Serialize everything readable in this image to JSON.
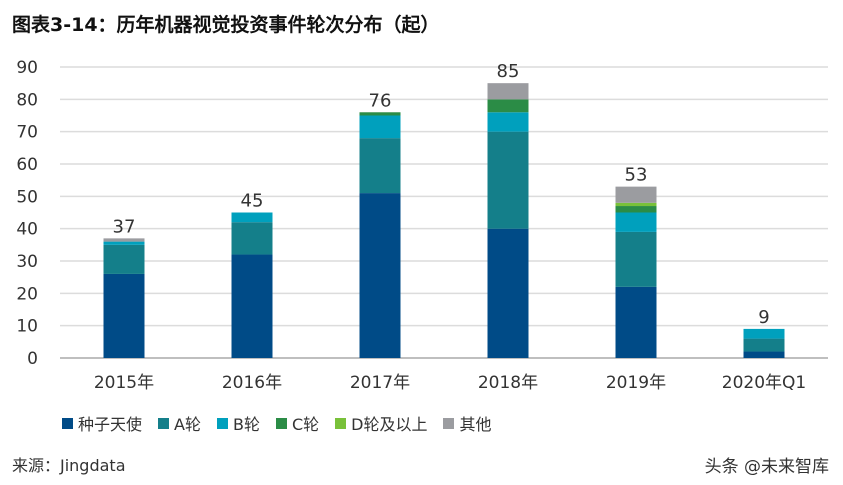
{
  "title": "图表3-14：历年机器视觉投资事件轮次分布（起）",
  "source": "来源：Jingdata",
  "watermark": "头条 @未来智库",
  "chart_data": {
    "type": "bar",
    "stacked": true,
    "categories": [
      "2015年",
      "2016年",
      "2017年",
      "2018年",
      "2019年",
      "2020年Q1"
    ],
    "series": [
      {
        "name": "种子天使",
        "color": "#004b87",
        "values": [
          26,
          32,
          51,
          40,
          22,
          2
        ]
      },
      {
        "name": "A轮",
        "color": "#147f8a",
        "values": [
          9,
          10,
          17,
          30,
          17,
          4
        ]
      },
      {
        "name": "B轮",
        "color": "#00a0bd",
        "values": [
          1,
          3,
          7,
          6,
          6,
          3
        ]
      },
      {
        "name": "C轮",
        "color": "#2b8c46",
        "values": [
          0,
          0,
          1,
          4,
          2,
          0
        ]
      },
      {
        "name": "D轮及以上",
        "color": "#79c13a",
        "values": [
          0,
          0,
          0,
          0,
          1,
          0
        ]
      },
      {
        "name": "其他",
        "color": "#9b9ca0",
        "values": [
          1,
          0,
          0,
          5,
          5,
          0
        ]
      }
    ],
    "totals": [
      37,
      45,
      76,
      85,
      53,
      9
    ],
    "yticks": [
      0,
      10,
      20,
      30,
      40,
      50,
      60,
      70,
      80,
      90
    ],
    "ylim": [
      0,
      90
    ],
    "grid": true,
    "legend": "bottom"
  }
}
